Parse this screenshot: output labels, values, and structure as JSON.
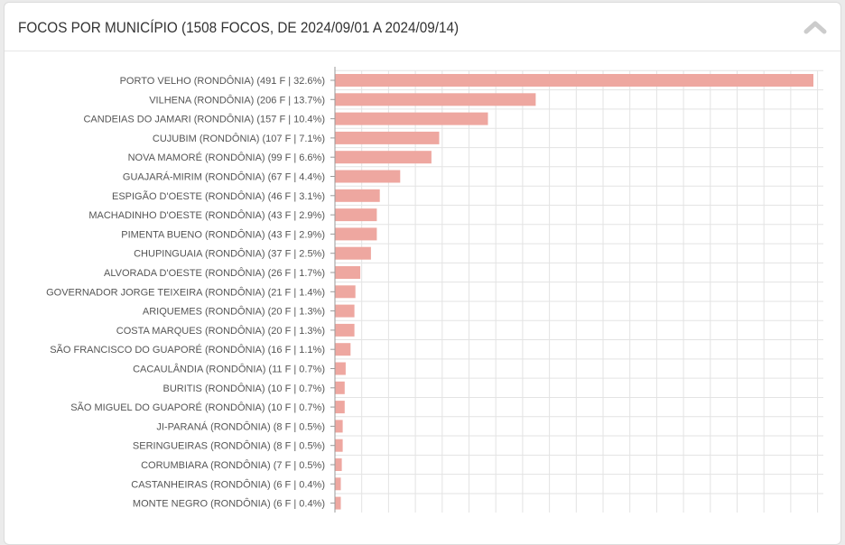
{
  "panel": {
    "title": "FOCOS POR MUNICÍPIO (1508 FOCOS, DE 2024/09/01 A 2024/09/14)",
    "collapse_icon": "chevron-up-icon"
  },
  "colors": {
    "bar": "#eea7a0",
    "grid": "#e3e3e3",
    "axis": "#999999",
    "text": "#555555",
    "chevron": "#cccccc"
  },
  "chart_data": {
    "type": "bar",
    "orientation": "horizontal",
    "title": "FOCOS POR MUNICÍPIO (1508 FOCOS, DE 2024/09/01 A 2024/09/14)",
    "xlabel": "",
    "ylabel": "",
    "grid": true,
    "xlim": [
      0,
      500
    ],
    "categories": [
      "PORTO VELHO (RONDÔNIA) (491 F | 32.6%)",
      "VILHENA (RONDÔNIA) (206 F | 13.7%)",
      "CANDEIAS DO JAMARI (RONDÔNIA) (157 F | 10.4%)",
      "CUJUBIM (RONDÔNIA) (107 F | 7.1%)",
      "NOVA MAMORÉ (RONDÔNIA) (99 F | 6.6%)",
      "GUAJARÁ-MIRIM (RONDÔNIA) (67 F | 4.4%)",
      "ESPIGÃO D'OESTE (RONDÔNIA) (46 F | 3.1%)",
      "MACHADINHO D'OESTE (RONDÔNIA) (43 F | 2.9%)",
      "PIMENTA BUENO (RONDÔNIA) (43 F | 2.9%)",
      "CHUPINGUAIA (RONDÔNIA) (37 F | 2.5%)",
      "ALVORADA D'OESTE (RONDÔNIA) (26 F | 1.7%)",
      "GOVERNADOR JORGE TEIXEIRA (RONDÔNIA) (21 F | 1.4%)",
      "ARIQUEMES (RONDÔNIA) (20 F | 1.3%)",
      "COSTA MARQUES (RONDÔNIA) (20 F | 1.3%)",
      "SÃO FRANCISCO DO GUAPORÉ (RONDÔNIA) (16 F | 1.1%)",
      "CACAULÂNDIA (RONDÔNIA) (11 F | 0.7%)",
      "BURITIS (RONDÔNIA) (10 F | 0.7%)",
      "SÃO MIGUEL DO GUAPORÉ (RONDÔNIA) (10 F | 0.7%)",
      "JI-PARANÁ (RONDÔNIA) (8 F | 0.5%)",
      "SERINGUEIRAS (RONDÔNIA) (8 F | 0.5%)",
      "CORUMBIARA (RONDÔNIA) (7 F | 0.5%)",
      "CASTANHEIRAS (RONDÔNIA) (6 F | 0.4%)",
      "MONTE NEGRO (RONDÔNIA) (6 F | 0.4%)"
    ],
    "values": [
      491,
      206,
      157,
      107,
      99,
      67,
      46,
      43,
      43,
      37,
      26,
      21,
      20,
      20,
      16,
      11,
      10,
      10,
      8,
      8,
      7,
      6,
      6
    ]
  }
}
